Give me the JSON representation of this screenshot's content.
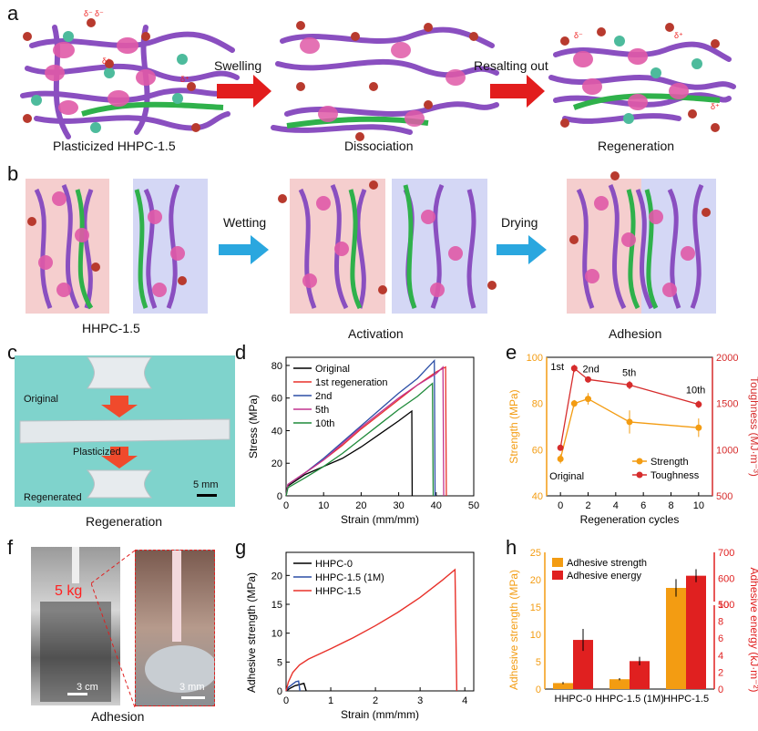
{
  "panel_labels": {
    "a": "a",
    "b": "b",
    "c": "c",
    "d": "d",
    "e": "e",
    "f": "f",
    "g": "g",
    "h": "h"
  },
  "panel_a": {
    "step1": "Swelling",
    "step2": "Resalting out",
    "cap_left": "Plasticized HHPC-1.5",
    "cap_mid": "Dissociation",
    "cap_right": "Regeneration",
    "delta_minus": "δ⁻",
    "delta_plus": "δ⁺"
  },
  "panel_b": {
    "step1": "Wetting",
    "step2": "Drying",
    "cap_left": "HHPC-1.5",
    "cap_mid": "Activation",
    "cap_right": "Adhesion"
  },
  "panel_c": {
    "lbl_original": "Original",
    "lbl_plasticized": "Plasticized",
    "lbl_regenerated": "Regenerated",
    "scale": "5 mm",
    "caption": "Regeneration",
    "bg": "#7fd3cc"
  },
  "panel_f": {
    "weight": "5 kg",
    "scale1": "3 cm",
    "scale2": "3 mm",
    "caption": "Adhesion"
  },
  "colors": {
    "black": "#000000",
    "red": "#e8312a",
    "blue": "#2b4ea6",
    "magenta": "#c2338f",
    "green": "#1f8a3a",
    "orange": "#f39c12",
    "darkred": "#d62c2c"
  },
  "chart_data": [
    {
      "id": "d",
      "type": "line",
      "xlabel": "Strain (mm/mm)",
      "ylabel": "Stress (MPa)",
      "xlim": [
        0,
        50
      ],
      "ylim": [
        0,
        85
      ],
      "xticks": [
        0,
        10,
        20,
        30,
        40,
        50
      ],
      "yticks": [
        0,
        20,
        40,
        60,
        80
      ],
      "legend": "top-left",
      "series": [
        {
          "name": "Original",
          "color": "#000000",
          "points": [
            [
              0,
              0
            ],
            [
              0.5,
              6
            ],
            [
              5,
              13
            ],
            [
              10,
              18
            ],
            [
              15,
              23
            ],
            [
              20,
              30
            ],
            [
              25,
              38
            ],
            [
              30,
              46
            ],
            [
              33.5,
              52
            ],
            [
              33.6,
              0
            ]
          ]
        },
        {
          "name": "1st regeneration",
          "color": "#e8312a",
          "points": [
            [
              0,
              0
            ],
            [
              0.5,
              7
            ],
            [
              5,
              14
            ],
            [
              10,
              22
            ],
            [
              15,
              31
            ],
            [
              20,
              41
            ],
            [
              25,
              50
            ],
            [
              30,
              59
            ],
            [
              35,
              68
            ],
            [
              40,
              76
            ],
            [
              42.5,
              79
            ],
            [
              42.7,
              0
            ]
          ]
        },
        {
          "name": "2nd",
          "color": "#2b4ea6",
          "points": [
            [
              0,
              0
            ],
            [
              0.5,
              7
            ],
            [
              5,
              14
            ],
            [
              10,
              23
            ],
            [
              15,
              33
            ],
            [
              20,
              43
            ],
            [
              25,
              53
            ],
            [
              30,
              63
            ],
            [
              35,
              72
            ],
            [
              39.5,
              83
            ],
            [
              39.7,
              0
            ]
          ]
        },
        {
          "name": "5th",
          "color": "#c2338f",
          "points": [
            [
              0,
              0
            ],
            [
              0.5,
              7
            ],
            [
              5,
              14
            ],
            [
              10,
              22
            ],
            [
              15,
              32
            ],
            [
              20,
              42
            ],
            [
              25,
              51
            ],
            [
              30,
              60
            ],
            [
              35,
              68
            ],
            [
              40,
              75
            ],
            [
              41.8,
              79
            ],
            [
              42,
              0
            ]
          ]
        },
        {
          "name": "10th",
          "color": "#1f8a3a",
          "points": [
            [
              0,
              0
            ],
            [
              0.5,
              5
            ],
            [
              5,
              11
            ],
            [
              10,
              18
            ],
            [
              15,
              26
            ],
            [
              20,
              35
            ],
            [
              25,
              44
            ],
            [
              30,
              53
            ],
            [
              35,
              61
            ],
            [
              39,
              69
            ],
            [
              39.2,
              0
            ]
          ]
        }
      ]
    },
    {
      "id": "e",
      "type": "line",
      "xlabel": "Regeneration cycles",
      "ylabel_left": "Strength (MPa)",
      "ylabel_right": "Toughness (MJ·m⁻³)",
      "xlim": [
        -1,
        11
      ],
      "ylim_left": [
        40,
        100
      ],
      "ylim_right": [
        500,
        2000
      ],
      "xticks": [
        0,
        2,
        4,
        6,
        8,
        10
      ],
      "yticks_left": [
        40,
        60,
        80,
        100
      ],
      "yticks_right": [
        500,
        1000,
        1500,
        2000
      ],
      "annotations": [
        "Original",
        "1st",
        "2nd",
        "5th",
        "10th"
      ],
      "legend": "bottom-right",
      "series": [
        {
          "name": "Strength",
          "color": "#f39c12",
          "axis": "left",
          "x": [
            0,
            1,
            2,
            5,
            10
          ],
          "y": [
            56,
            80,
            82,
            72,
            69.5
          ],
          "err": [
            2,
            1.5,
            2.5,
            5,
            4
          ]
        },
        {
          "name": "Toughness",
          "color": "#d62c2c",
          "axis": "right",
          "x": [
            0,
            1,
            2,
            5,
            10
          ],
          "y": [
            1020,
            1880,
            1760,
            1700,
            1490
          ],
          "err": [
            30,
            40,
            30,
            45,
            40
          ]
        }
      ]
    },
    {
      "id": "g",
      "type": "line",
      "xlabel": "Strain (mm/mm)",
      "ylabel": "Adhesive strength (MPa)",
      "xlim": [
        0,
        4.2
      ],
      "ylim": [
        0,
        24
      ],
      "xticks": [
        0,
        1,
        2,
        3,
        4
      ],
      "yticks": [
        0,
        5,
        10,
        15,
        20
      ],
      "legend": "top-left",
      "series": [
        {
          "name": "HHPC-0",
          "color": "#000000",
          "points": [
            [
              0,
              0
            ],
            [
              0.1,
              0.5
            ],
            [
              0.2,
              0.9
            ],
            [
              0.3,
              1.1
            ],
            [
              0.4,
              1.3
            ],
            [
              0.45,
              0
            ]
          ]
        },
        {
          "name": "HHPC-1.5 (1M)",
          "color": "#2b4ea6",
          "points": [
            [
              0,
              0
            ],
            [
              0.05,
              0.6
            ],
            [
              0.15,
              1.2
            ],
            [
              0.22,
              1.6
            ],
            [
              0.28,
              1.7
            ],
            [
              0.31,
              0
            ]
          ]
        },
        {
          "name": "HHPC-1.5",
          "color": "#e8312a",
          "points": [
            [
              0,
              0
            ],
            [
              0.05,
              1.5
            ],
            [
              0.15,
              3.2
            ],
            [
              0.3,
              4.5
            ],
            [
              0.5,
              5.5
            ],
            [
              1,
              7.3
            ],
            [
              1.5,
              9.2
            ],
            [
              2,
              11.3
            ],
            [
              2.5,
              13.6
            ],
            [
              3,
              16.2
            ],
            [
              3.5,
              19.2
            ],
            [
              3.78,
              21
            ],
            [
              3.82,
              0
            ]
          ]
        }
      ]
    },
    {
      "id": "h",
      "type": "bar",
      "categories": [
        "HHPC-0",
        "HHPC-1.5 (1M)",
        "HHPC-1.5"
      ],
      "ylabel_left": "Adhesive strength (MPa)",
      "ylabel_right": "Adhesive energy (kJ·m⁻²)",
      "ylim_left": [
        0,
        25
      ],
      "yticks_left": [
        0,
        5,
        10,
        15,
        20,
        25
      ],
      "yticks_right": [
        "0",
        "2",
        "4",
        "6",
        "8",
        "10",
        "500",
        "600",
        "700"
      ],
      "legend": "top-left",
      "series": [
        {
          "name": "Adhesive strength",
          "color": "#f39c12",
          "axis": "left",
          "values": [
            1.1,
            1.8,
            18.5
          ],
          "err": [
            0.2,
            0.2,
            1.6
          ]
        },
        {
          "name": "Adhesive energy",
          "color": "#e02020",
          "axis": "right",
          "values": [
            5.8,
            3.3,
            610
          ],
          "err": [
            1.3,
            0.5,
            25
          ]
        }
      ]
    }
  ]
}
